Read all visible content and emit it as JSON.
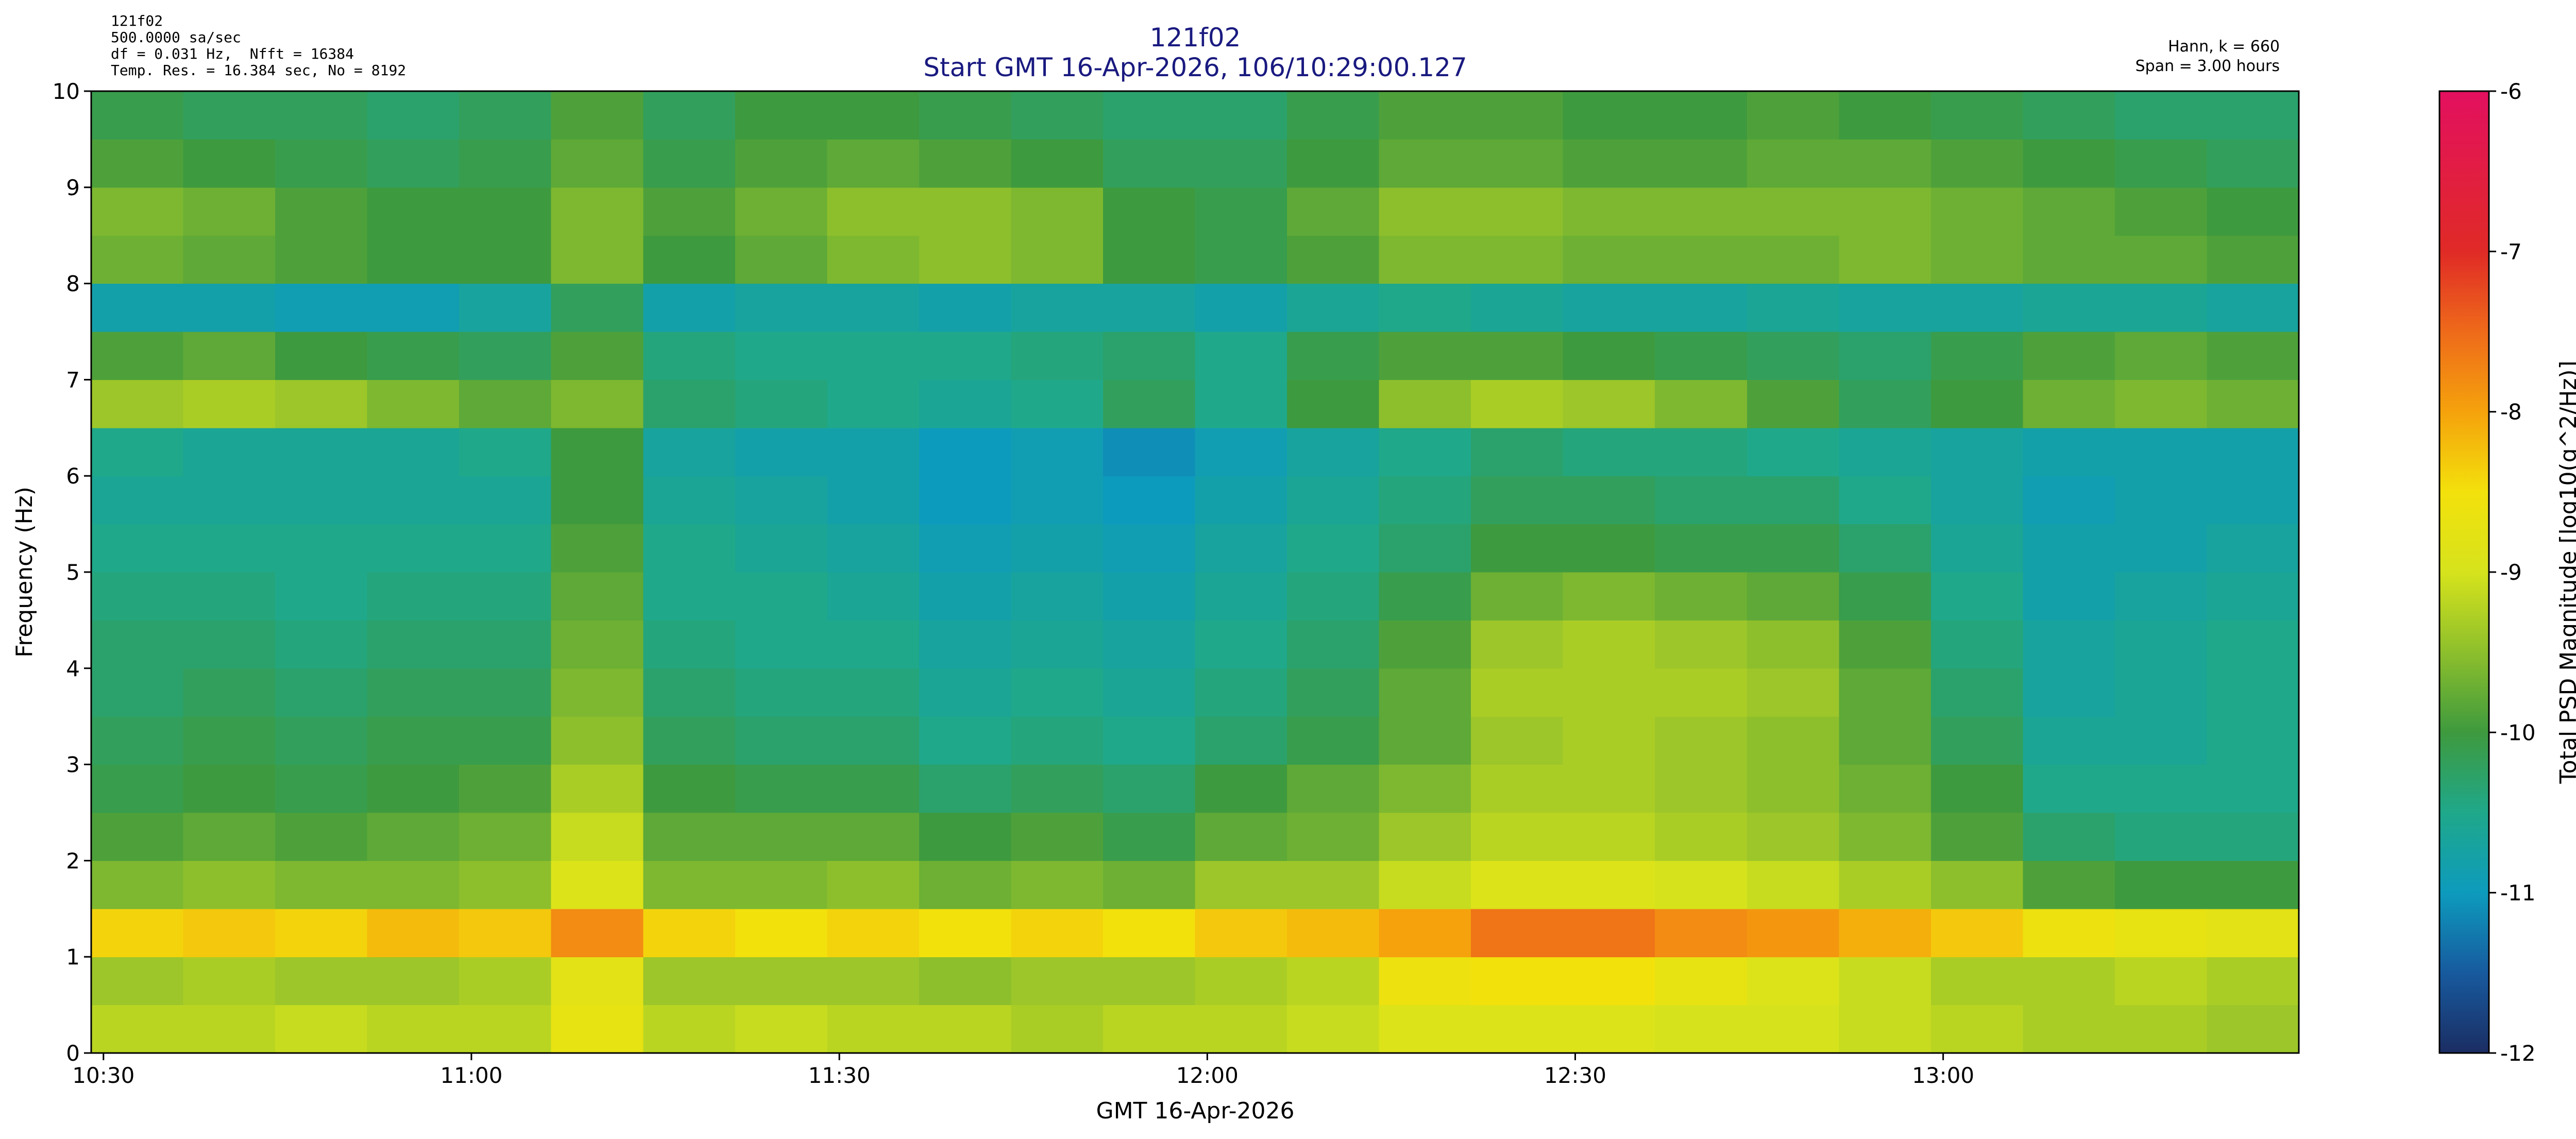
{
  "chart_data": {
    "type": "heatmap",
    "info_left": [
      "121f02",
      "500.0000 sa/sec",
      "df = 0.031 Hz,  Nfft = 16384",
      "Temp. Res. = 16.384 sec, No = 8192"
    ],
    "title": [
      "121f02",
      "Start GMT 16-Apr-2026, 106/10:29:00.127"
    ],
    "info_right": [
      "Hann, k = 660",
      "Span = 3.00 hours"
    ],
    "x_label": "GMT 16-Apr-2026",
    "y_label": "Frequency (Hz)",
    "colorbar_label": "Total PSD Magnitude [log10(g^2/Hz)]",
    "xlim": [
      0,
      180
    ],
    "xticks": [
      {
        "value": 1,
        "label": "10:30"
      },
      {
        "value": 31,
        "label": "11:00"
      },
      {
        "value": 61,
        "label": "11:30"
      },
      {
        "value": 91,
        "label": "12:00"
      },
      {
        "value": 121,
        "label": "12:30"
      },
      {
        "value": 151,
        "label": "13:00"
      }
    ],
    "ylim": [
      0,
      10
    ],
    "yticks": [
      0,
      1,
      2,
      3,
      4,
      5,
      6,
      7,
      8,
      9,
      10
    ],
    "zlim": [
      -12,
      -6
    ],
    "zticks": [
      -12,
      -11,
      -10,
      -9,
      -8,
      -7,
      -6
    ],
    "colorscale": [
      [
        -12,
        "#1b2d63"
      ],
      [
        -11.5,
        "#175a9e"
      ],
      [
        -11,
        "#0d9bbd"
      ],
      [
        -10.5,
        "#1fa88a"
      ],
      [
        -10,
        "#3e9a3e"
      ],
      [
        -9.5,
        "#8dbf2c"
      ],
      [
        -9,
        "#d6e31c"
      ],
      [
        -8.5,
        "#f3e10c"
      ],
      [
        -8,
        "#f5a20c"
      ],
      [
        -7.5,
        "#ee6a1a"
      ],
      [
        -7,
        "#e02a26"
      ],
      [
        -6,
        "#e3105f"
      ]
    ],
    "xbins": [
      0,
      7.5,
      15,
      22.5,
      30,
      37.5,
      45,
      52.5,
      60,
      67.5,
      75,
      82.5,
      90,
      97.5,
      105,
      112.5,
      120,
      127.5,
      135,
      142.5,
      150,
      157.5,
      165,
      172.5,
      180
    ],
    "ybins": [
      0,
      0.5,
      1,
      1.5,
      2,
      2.5,
      3,
      3.5,
      4,
      4.5,
      5,
      5.5,
      6,
      6.5,
      7,
      7.5,
      8,
      8.5,
      9,
      9.5,
      10
    ],
    "z": [
      [
        -9.2,
        -9.2,
        -9.1,
        -9.2,
        -9.2,
        -8.7,
        -9.2,
        -9.1,
        -9.2,
        -9.2,
        -9.3,
        -9.2,
        -9.2,
        -9.1,
        -8.9,
        -8.9,
        -8.9,
        -9.0,
        -9.0,
        -9.1,
        -9.2,
        -9.3,
        -9.3,
        -9.4
      ],
      [
        -9.4,
        -9.3,
        -9.4,
        -9.4,
        -9.3,
        -8.8,
        -9.4,
        -9.4,
        -9.4,
        -9.5,
        -9.4,
        -9.4,
        -9.3,
        -9.2,
        -8.6,
        -8.5,
        -8.5,
        -8.7,
        -8.9,
        -9.1,
        -9.3,
        -9.3,
        -9.2,
        -9.3
      ],
      [
        -8.4,
        -8.3,
        -8.4,
        -8.2,
        -8.3,
        -7.8,
        -8.4,
        -8.5,
        -8.4,
        -8.5,
        -8.4,
        -8.5,
        -8.3,
        -8.2,
        -8.0,
        -7.6,
        -7.6,
        -7.8,
        -7.9,
        -8.1,
        -8.3,
        -8.6,
        -8.7,
        -8.8
      ],
      [
        -9.6,
        -9.5,
        -9.6,
        -9.6,
        -9.5,
        -8.9,
        -9.6,
        -9.6,
        -9.5,
        -9.7,
        -9.6,
        -9.7,
        -9.4,
        -9.4,
        -9.1,
        -8.9,
        -8.9,
        -9.0,
        -9.1,
        -9.3,
        -9.5,
        -9.9,
        -10.0,
        -10.0
      ],
      [
        -9.9,
        -9.8,
        -9.9,
        -9.8,
        -9.7,
        -9.1,
        -9.8,
        -9.8,
        -9.8,
        -10.0,
        -9.9,
        -10.1,
        -9.8,
        -9.7,
        -9.4,
        -9.2,
        -9.2,
        -9.3,
        -9.4,
        -9.6,
        -9.9,
        -10.3,
        -10.4,
        -10.4
      ],
      [
        -10.1,
        -10.0,
        -10.1,
        -10.0,
        -9.9,
        -9.3,
        -10.0,
        -10.1,
        -10.1,
        -10.3,
        -10.2,
        -10.3,
        -10.0,
        -9.8,
        -9.6,
        -9.3,
        -9.3,
        -9.4,
        -9.5,
        -9.7,
        -10.0,
        -10.5,
        -10.5,
        -10.5
      ],
      [
        -10.2,
        -10.1,
        -10.2,
        -10.1,
        -10.1,
        -9.5,
        -10.2,
        -10.3,
        -10.3,
        -10.5,
        -10.4,
        -10.5,
        -10.3,
        -10.1,
        -9.8,
        -9.4,
        -9.3,
        -9.4,
        -9.5,
        -9.8,
        -10.2,
        -10.6,
        -10.6,
        -10.5
      ],
      [
        -10.3,
        -10.2,
        -10.3,
        -10.2,
        -10.2,
        -9.6,
        -10.3,
        -10.4,
        -10.4,
        -10.6,
        -10.5,
        -10.6,
        -10.4,
        -10.2,
        -9.8,
        -9.3,
        -9.3,
        -9.3,
        -9.4,
        -9.8,
        -10.3,
        -10.7,
        -10.6,
        -10.5
      ],
      [
        -10.3,
        -10.3,
        -10.4,
        -10.3,
        -10.3,
        -9.7,
        -10.4,
        -10.5,
        -10.5,
        -10.7,
        -10.6,
        -10.7,
        -10.5,
        -10.3,
        -9.9,
        -9.4,
        -9.3,
        -9.4,
        -9.5,
        -9.9,
        -10.4,
        -10.7,
        -10.6,
        -10.5
      ],
      [
        -10.4,
        -10.4,
        -10.5,
        -10.4,
        -10.4,
        -9.8,
        -10.5,
        -10.5,
        -10.6,
        -10.8,
        -10.7,
        -10.8,
        -10.6,
        -10.4,
        -10.1,
        -9.7,
        -9.6,
        -9.7,
        -9.8,
        -10.1,
        -10.5,
        -10.8,
        -10.7,
        -10.6
      ],
      [
        -10.5,
        -10.5,
        -10.5,
        -10.5,
        -10.5,
        -9.9,
        -10.5,
        -10.6,
        -10.7,
        -10.9,
        -10.8,
        -10.9,
        -10.7,
        -10.5,
        -10.3,
        -10.0,
        -10.0,
        -10.1,
        -10.1,
        -10.3,
        -10.6,
        -10.8,
        -10.8,
        -10.7
      ],
      [
        -10.6,
        -10.6,
        -10.6,
        -10.6,
        -10.6,
        -10.0,
        -10.6,
        -10.7,
        -10.8,
        -11.0,
        -10.9,
        -11.0,
        -10.8,
        -10.6,
        -10.4,
        -10.2,
        -10.2,
        -10.3,
        -10.3,
        -10.5,
        -10.7,
        -10.9,
        -10.8,
        -10.8
      ],
      [
        -10.5,
        -10.6,
        -10.6,
        -10.6,
        -10.5,
        -10.0,
        -10.7,
        -10.8,
        -10.8,
        -11.0,
        -10.9,
        -11.1,
        -10.9,
        -10.7,
        -10.5,
        -10.3,
        -10.4,
        -10.4,
        -10.5,
        -10.6,
        -10.7,
        -10.8,
        -10.8,
        -10.8
      ],
      [
        -9.4,
        -9.3,
        -9.4,
        -9.6,
        -9.8,
        -9.6,
        -10.3,
        -10.4,
        -10.5,
        -10.6,
        -10.5,
        -10.2,
        -10.5,
        -10.0,
        -9.5,
        -9.3,
        -9.4,
        -9.6,
        -9.9,
        -10.2,
        -10.0,
        -9.7,
        -9.6,
        -9.7
      ],
      [
        -9.9,
        -9.8,
        -10.0,
        -10.1,
        -10.2,
        -9.9,
        -10.4,
        -10.5,
        -10.5,
        -10.5,
        -10.4,
        -10.3,
        -10.5,
        -10.1,
        -9.9,
        -9.9,
        -10.0,
        -10.1,
        -10.2,
        -10.3,
        -10.1,
        -9.9,
        -9.8,
        -9.9
      ],
      [
        -10.8,
        -10.8,
        -10.9,
        -10.9,
        -10.7,
        -10.2,
        -10.8,
        -10.7,
        -10.7,
        -10.8,
        -10.7,
        -10.7,
        -10.8,
        -10.6,
        -10.5,
        -10.6,
        -10.7,
        -10.7,
        -10.6,
        -10.7,
        -10.7,
        -10.6,
        -10.6,
        -10.7
      ],
      [
        -9.7,
        -9.8,
        -9.9,
        -10.0,
        -10.0,
        -9.6,
        -10.0,
        -9.8,
        -9.6,
        -9.5,
        -9.6,
        -10.0,
        -10.1,
        -9.9,
        -9.6,
        -9.6,
        -9.7,
        -9.7,
        -9.7,
        -9.6,
        -9.7,
        -9.8,
        -9.8,
        -9.9
      ],
      [
        -9.6,
        -9.7,
        -9.9,
        -10.0,
        -10.0,
        -9.6,
        -9.9,
        -9.7,
        -9.5,
        -9.5,
        -9.6,
        -10.0,
        -10.1,
        -9.8,
        -9.5,
        -9.5,
        -9.6,
        -9.6,
        -9.6,
        -9.6,
        -9.7,
        -9.8,
        -9.9,
        -10.0
      ],
      [
        -9.9,
        -10.0,
        -10.1,
        -10.2,
        -10.1,
        -9.8,
        -10.1,
        -9.9,
        -9.8,
        -9.9,
        -10.0,
        -10.2,
        -10.2,
        -10.0,
        -9.8,
        -9.8,
        -9.9,
        -9.9,
        -9.8,
        -9.8,
        -9.9,
        -10.0,
        -10.1,
        -10.2
      ],
      [
        -10.1,
        -10.2,
        -10.2,
        -10.3,
        -10.2,
        -9.9,
        -10.2,
        -10.0,
        -10.0,
        -10.1,
        -10.2,
        -10.3,
        -10.3,
        -10.1,
        -9.9,
        -9.9,
        -10.0,
        -10.0,
        -9.9,
        -10.0,
        -10.1,
        -10.2,
        -10.3,
        -10.3
      ]
    ]
  }
}
